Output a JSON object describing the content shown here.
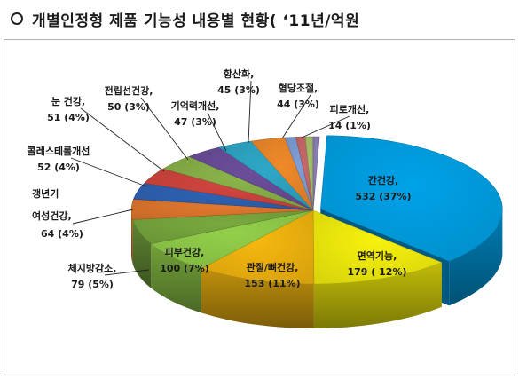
{
  "title": "개별인정형 제품 기능성 내용별 현황( ‘11년/억원",
  "chart_data": {
    "type": "pie",
    "title": "개별인정형 제품 기능성 내용별 현황( ‘11년/억원",
    "slices": [
      {
        "name": "간건강,",
        "value": 532,
        "value_label": "532 (37%)",
        "color": "#00a2e8"
      },
      {
        "name": "면역기능,",
        "value": 179,
        "value_label": "179 ( 12%)",
        "color": "#f7f20c"
      },
      {
        "name": "관절/뼈건강,",
        "value": 153,
        "value_label": "153 (11%)",
        "color": "#f6b80f"
      },
      {
        "name": "피부건강,",
        "value": 100,
        "value_label": "100 (7%)",
        "color": "#93d04a"
      },
      {
        "name": "체지방감소,",
        "value": 79,
        "value_label": "79 (5%)",
        "color": "#79a93f"
      },
      {
        "name": "갱년기 여성건강,",
        "value": 64,
        "value_label": "64 (4%)",
        "color": "#e2782e"
      },
      {
        "name": "콜레스테롤개선",
        "value": 52,
        "value_label": "52 (4%)",
        "color": "#2f63b5"
      },
      {
        "name": "눈 건강,",
        "value": 51,
        "value_label": "51 (4%)",
        "color": "#d2453f"
      },
      {
        "name": "전립선건강,",
        "value": 50,
        "value_label": "50 (3%)",
        "color": "#8bb44a"
      },
      {
        "name": "기억력개선,",
        "value": 47,
        "value_label": "47 (3%)",
        "color": "#6c4e9b"
      },
      {
        "name": "항산화,",
        "value": 45,
        "value_label": "45 (3%)",
        "color": "#2ea8c8"
      },
      {
        "name": "혈당조절,",
        "value": 44,
        "value_label": "44 (3%)",
        "color": "#f08a2a"
      },
      {
        "name": "피로개선,",
        "value": 14,
        "value_label": "14 (1%)",
        "color": "#7f9fd6"
      },
      {
        "name": "",
        "value": 12,
        "value_label": "",
        "color": "#c9686a"
      },
      {
        "name": "",
        "value": 10,
        "value_label": "",
        "color": "#a8c46a"
      },
      {
        "name": "",
        "value": 8,
        "value_label": "",
        "color": "#8f7fb8"
      }
    ]
  }
}
